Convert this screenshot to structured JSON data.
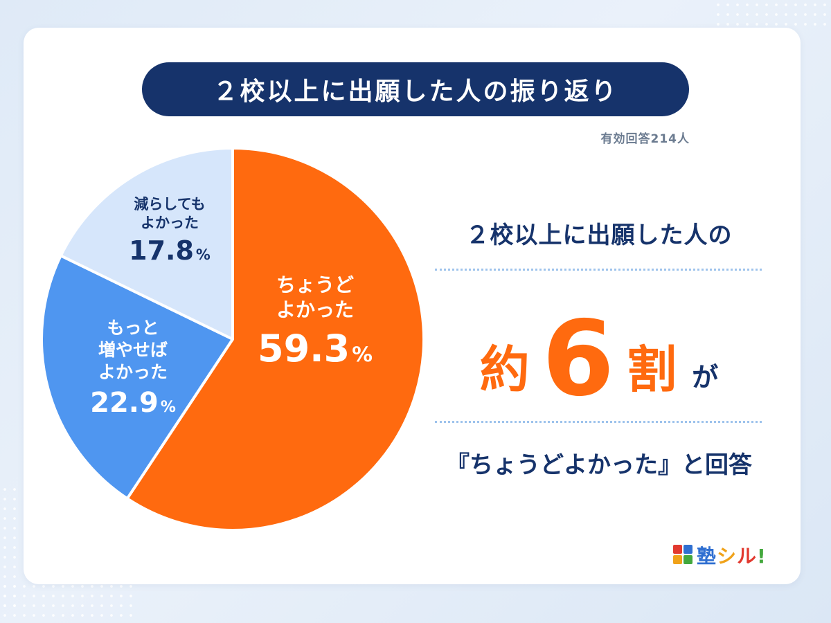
{
  "title": "２校以上に出願した人の振り返り",
  "respondents": "有効回答214人",
  "chart_data": {
    "type": "pie",
    "slices": [
      {
        "label": "ちょうどよかった",
        "value": 59.3,
        "color": "#ff6a0f"
      },
      {
        "label": "もっと増やせばよかった",
        "value": 22.9,
        "color": "#4f96f0"
      },
      {
        "label": "減らしてもよかった",
        "value": 17.8,
        "color": "#d6e6fb"
      }
    ],
    "start": "12 o'clock, clockwise"
  },
  "labels": {
    "just": {
      "line1": "ちょうど",
      "line2": "よかった",
      "pct": "59.3",
      "sign": "%"
    },
    "more": {
      "line1": "もっと",
      "line2": "増やせば",
      "line3": "よかった",
      "pct": "22.9",
      "sign": "%"
    },
    "less": {
      "line1": "減らしても",
      "line2": "よかった",
      "pct": "17.8",
      "sign": "%"
    }
  },
  "summary": {
    "line1": "２校以上に出願した人の",
    "approx": "約",
    "number": "6",
    "unit": "割",
    "particle": "が",
    "answer": "『ちょうどよかった』と回答"
  },
  "logo": {
    "parts": [
      {
        "text": "塾",
        "color": "#2f6fd1"
      },
      {
        "text": "シ",
        "color": "#f0a21a"
      },
      {
        "text": "ル",
        "color": "#e2392f"
      },
      {
        "text": "!",
        "color": "#43a83d"
      }
    ],
    "mark_colors": [
      "#e2392f",
      "#2f6fd1",
      "#f0a21a",
      "#43a83d"
    ]
  }
}
